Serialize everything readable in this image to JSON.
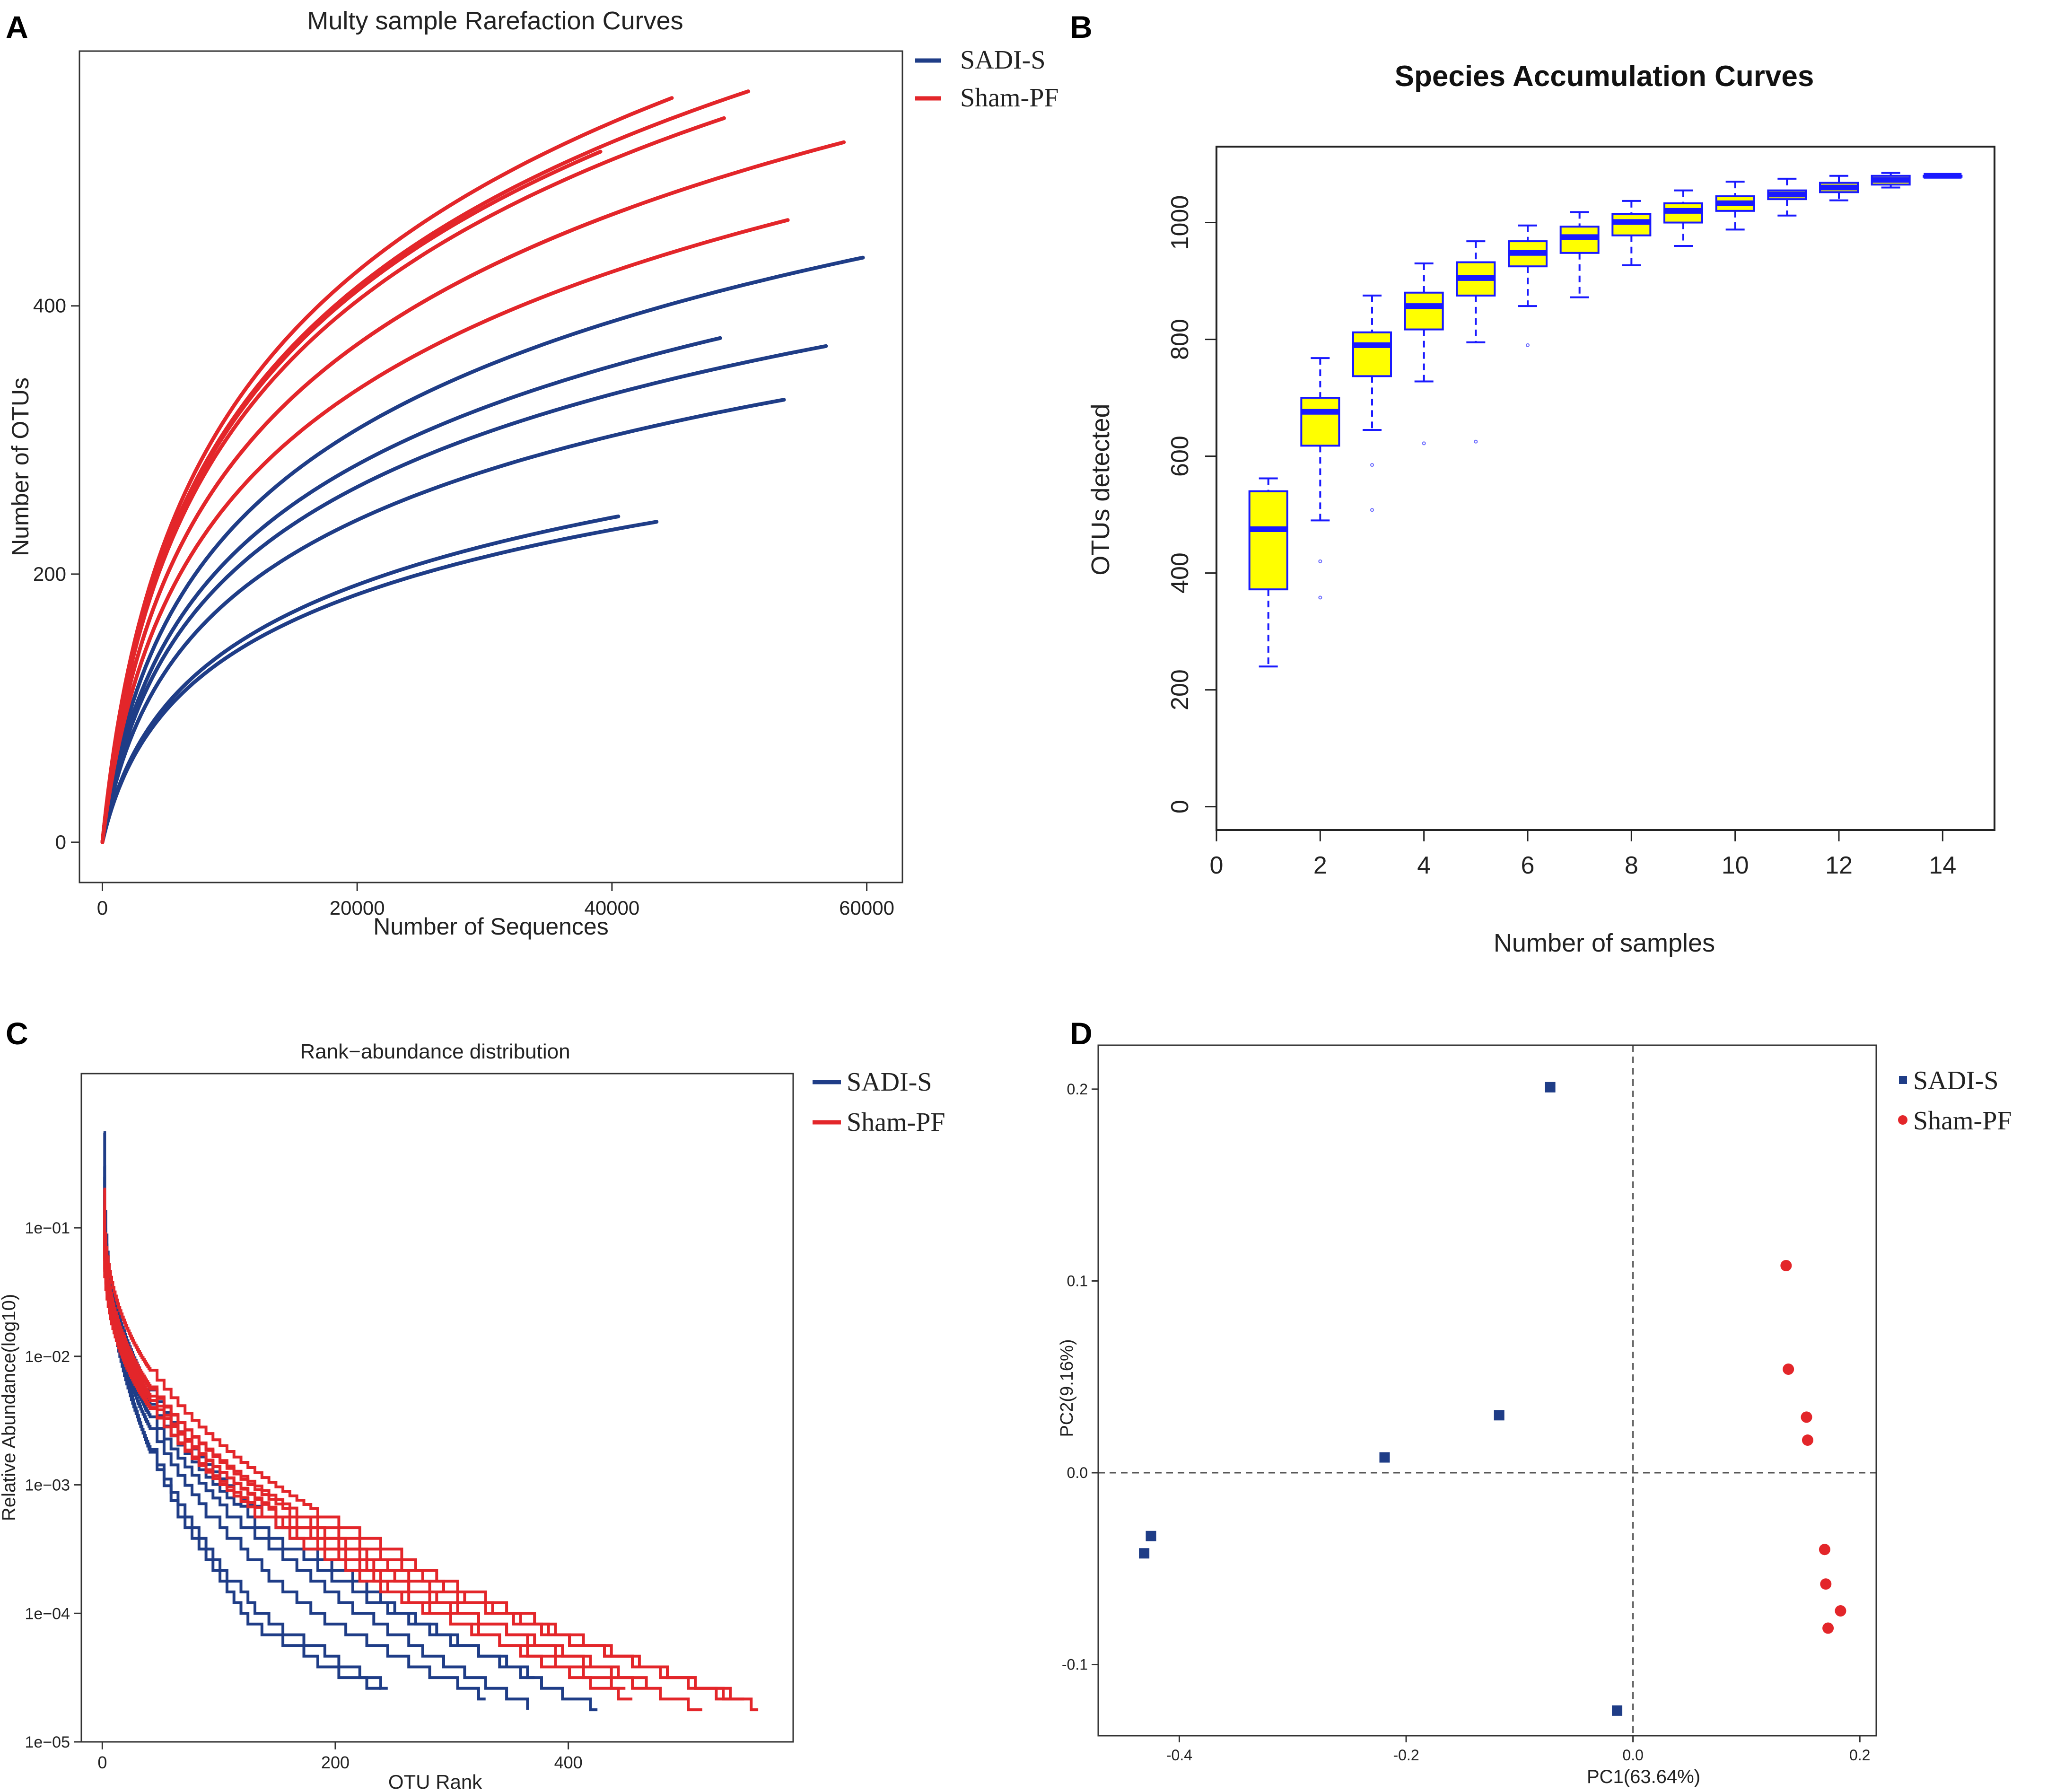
{
  "figure": {
    "panel_labels": [
      "A",
      "B",
      "C",
      "D"
    ]
  },
  "colors": {
    "sadi": "#1f3d87",
    "sham": "#e3262a",
    "box_fill": "#ffff00",
    "box_stroke": "#1a1aff"
  },
  "chart_data": [
    {
      "id": "A",
      "type": "line",
      "title": "Multy sample Rarefaction Curves",
      "xlabel": "Number of Sequences",
      "ylabel": "Number of OTUs",
      "xlim": [
        -1800,
        62800
      ],
      "ylim": [
        -30,
        590
      ],
      "xticks": [
        0,
        20000,
        40000,
        60000
      ],
      "xtick_labels": [
        "0",
        "20000",
        "40000",
        "60000"
      ],
      "yticks": [
        0,
        200,
        400
      ],
      "ytick_labels": [
        "0",
        "200",
        "400"
      ],
      "legend": {
        "position": "top-right-outside",
        "entries": [
          "SADI-S",
          "Sham-PF"
        ]
      },
      "series": [
        {
          "name": "SADI-S",
          "group": "sadi",
          "end_x": 59700,
          "end_y": 436
        },
        {
          "name": "SADI-S",
          "group": "sadi",
          "end_x": 48500,
          "end_y": 376
        },
        {
          "name": "SADI-S",
          "group": "sadi",
          "end_x": 56800,
          "end_y": 370
        },
        {
          "name": "SADI-S",
          "group": "sadi",
          "end_x": 53500,
          "end_y": 330
        },
        {
          "name": "SADI-S",
          "group": "sadi",
          "end_x": 40500,
          "end_y": 243
        },
        {
          "name": "SADI-S",
          "group": "sadi",
          "end_x": 43500,
          "end_y": 239
        },
        {
          "name": "Sham-PF",
          "group": "sham",
          "end_x": 50700,
          "end_y": 560
        },
        {
          "name": "Sham-PF",
          "group": "sham",
          "end_x": 44700,
          "end_y": 555
        },
        {
          "name": "Sham-PF",
          "group": "sham",
          "end_x": 48800,
          "end_y": 540
        },
        {
          "name": "Sham-PF",
          "group": "sham",
          "end_x": 58200,
          "end_y": 522
        },
        {
          "name": "Sham-PF",
          "group": "sham",
          "end_x": 39100,
          "end_y": 515
        },
        {
          "name": "Sham-PF",
          "group": "sham",
          "end_x": 41400,
          "end_y": 473
        },
        {
          "name": "Sham-PF",
          "group": "sham",
          "end_x": 53800,
          "end_y": 464
        }
      ]
    },
    {
      "id": "B",
      "type": "box",
      "title": "Species Accumulation Curves",
      "xlabel": "Number of samples",
      "ylabel": "OTUs detected",
      "xlim": [
        0,
        15
      ],
      "ylim": [
        -40,
        1130
      ],
      "xticks": [
        0,
        2,
        4,
        6,
        8,
        10,
        12,
        14
      ],
      "xtick_labels": [
        "0",
        "2",
        "4",
        "6",
        "8",
        "10",
        "12",
        "14"
      ],
      "yticks": [
        0,
        200,
        400,
        600,
        800,
        1000
      ],
      "ytick_labels": [
        "0",
        "200",
        "400",
        "600",
        "800",
        "1000"
      ],
      "boxes": [
        {
          "x": 1,
          "min": 240,
          "q1": 372,
          "median": 475,
          "q3": 540,
          "max": 562
        },
        {
          "x": 2,
          "min": 490,
          "q1": 618,
          "median": 676,
          "q3": 700,
          "max": 768,
          "outliers": [
            420,
            358
          ]
        },
        {
          "x": 3,
          "min": 645,
          "q1": 737,
          "median": 790,
          "q3": 812,
          "max": 875,
          "outliers": [
            585,
            508
          ]
        },
        {
          "x": 4,
          "min": 728,
          "q1": 817,
          "median": 857,
          "q3": 880,
          "max": 930,
          "outliers": [
            622
          ]
        },
        {
          "x": 5,
          "min": 795,
          "q1": 875,
          "median": 905,
          "q3": 932,
          "max": 968,
          "outliers": [
            625
          ]
        },
        {
          "x": 6,
          "min": 857,
          "q1": 925,
          "median": 948,
          "q3": 968,
          "max": 995,
          "outliers": [
            790
          ]
        },
        {
          "x": 7,
          "min": 872,
          "q1": 948,
          "median": 975,
          "q3": 993,
          "max": 1018
        },
        {
          "x": 8,
          "min": 927,
          "q1": 978,
          "median": 1001,
          "q3": 1015,
          "max": 1037
        },
        {
          "x": 9,
          "min": 960,
          "q1": 1000,
          "median": 1020,
          "q3": 1033,
          "max": 1055
        },
        {
          "x": 10,
          "min": 988,
          "q1": 1020,
          "median": 1033,
          "q3": 1045,
          "max": 1070
        },
        {
          "x": 11,
          "min": 1012,
          "q1": 1040,
          "median": 1048,
          "q3": 1055,
          "max": 1075
        },
        {
          "x": 12,
          "min": 1038,
          "q1": 1052,
          "median": 1060,
          "q3": 1068,
          "max": 1080
        },
        {
          "x": 13,
          "min": 1060,
          "q1": 1065,
          "median": 1073,
          "q3": 1080,
          "max": 1085
        },
        {
          "x": 14,
          "min": 1080,
          "q1": 1080,
          "median": 1080,
          "q3": 1080,
          "max": 1080
        }
      ]
    },
    {
      "id": "C",
      "type": "line",
      "title": "Rank−abundance distribution",
      "xlabel": "OTU Rank",
      "ylabel": "Relative Abundance(log10)",
      "yscale": "log10",
      "xlim": [
        -18,
        593
      ],
      "ylim_log10": [
        -5,
        0.2
      ],
      "xticks": [
        0,
        200,
        400
      ],
      "xtick_labels": [
        "0",
        "200",
        "400"
      ],
      "yticks_log10": [
        -5,
        -4,
        -3,
        -2,
        -1
      ],
      "ytick_labels": [
        "1e−05",
        "1e−04",
        "1e−03",
        "1e−02",
        "1e−01"
      ],
      "legend": {
        "position": "top-right-outside",
        "entries": [
          "SADI-S",
          "Sham-PF"
        ]
      },
      "series": [
        {
          "name": "SADI-S",
          "group": "sadi",
          "start": 0.55,
          "mid_rank": 120,
          "mid": 9.5e-05,
          "end_rank": 240,
          "end": 2.4e-05
        },
        {
          "name": "SADI-S",
          "group": "sadi",
          "start": 0.3,
          "mid_rank": 130,
          "mid": 0.00011,
          "end_rank": 250,
          "end": 2.5e-05
        },
        {
          "name": "SADI-S",
          "group": "sadi",
          "start": 0.2,
          "mid_rank": 170,
          "mid": 0.00012,
          "end_rank": 330,
          "end": 2.2e-05
        },
        {
          "name": "SADI-S",
          "group": "sadi",
          "start": 0.15,
          "mid_rank": 200,
          "mid": 0.00014,
          "end_rank": 370,
          "end": 1.8e-05
        },
        {
          "name": "SADI-S",
          "group": "sadi",
          "start": 0.25,
          "mid_rank": 220,
          "mid": 0.00017,
          "end_rank": 430,
          "end": 1.7e-05
        },
        {
          "name": "SADI-S",
          "group": "sadi",
          "start": 0.18,
          "mid_rank": 210,
          "mid": 0.00016,
          "end_rank": 375,
          "end": 3.2e-05
        },
        {
          "name": "Sham-PF",
          "group": "sham",
          "start": 0.2,
          "mid_rank": 250,
          "mid": 0.0003,
          "end_rank": 555,
          "end": 2e-05
        },
        {
          "name": "Sham-PF",
          "group": "sham",
          "start": 0.12,
          "mid_rank": 240,
          "mid": 0.00028,
          "end_rank": 565,
          "end": 1.8e-05
        },
        {
          "name": "Sham-PF",
          "group": "sham",
          "start": 0.15,
          "mid_rank": 230,
          "mid": 0.00027,
          "end_rank": 540,
          "end": 2.3e-05
        },
        {
          "name": "Sham-PF",
          "group": "sham",
          "start": 0.1,
          "mid_rank": 225,
          "mid": 0.00026,
          "end_rank": 520,
          "end": 1.7e-05
        },
        {
          "name": "Sham-PF",
          "group": "sham",
          "start": 0.13,
          "mid_rank": 220,
          "mid": 0.00025,
          "end_rank": 470,
          "end": 2.8e-05
        },
        {
          "name": "Sham-PF",
          "group": "sham",
          "start": 0.09,
          "mid_rank": 215,
          "mid": 0.00024,
          "end_rank": 460,
          "end": 2e-05
        },
        {
          "name": "Sham-PF",
          "group": "sham",
          "start": 0.11,
          "mid_rank": 210,
          "mid": 0.00022,
          "end_rank": 450,
          "end": 2.6e-05
        }
      ]
    },
    {
      "id": "D",
      "type": "scatter",
      "xlabel": "PC1(63.64%)",
      "ylabel": "PC2(9.16%)",
      "xlim": [
        -0.4715,
        0.2145
      ],
      "ylim": [
        -0.1371,
        0.2229
      ],
      "xticks": [
        -0.4,
        -0.2,
        0.0,
        0.2
      ],
      "xtick_labels": [
        "-0.4",
        "-0.2",
        "0.0",
        "0.2"
      ],
      "yticks": [
        -0.1,
        0.0,
        0.1,
        0.2
      ],
      "ytick_labels": [
        "-0.1",
        "0.0",
        "0.1",
        "0.2"
      ],
      "reference_lines": {
        "x": 0,
        "y": 0
      },
      "legend": {
        "position": "top-right-outside",
        "entries": [
          "SADI-S",
          "Sham-PF"
        ]
      },
      "series": [
        {
          "name": "SADI-S",
          "group": "sadi",
          "marker": "square",
          "points": [
            [
              -0.073,
              0.201
            ],
            [
              -0.118,
              0.03
            ],
            [
              -0.219,
              0.008
            ],
            [
              -0.425,
              -0.033
            ],
            [
              -0.431,
              -0.042
            ],
            [
              -0.014,
              -0.124
            ]
          ]
        },
        {
          "name": "Sham-PF",
          "group": "sham",
          "marker": "circle",
          "points": [
            [
              0.135,
              0.108
            ],
            [
              0.137,
              0.054
            ],
            [
              0.153,
              0.029
            ],
            [
              0.154,
              0.017
            ],
            [
              0.169,
              -0.04
            ],
            [
              0.17,
              -0.058
            ],
            [
              0.183,
              -0.072
            ],
            [
              0.172,
              -0.081
            ]
          ]
        }
      ]
    }
  ]
}
